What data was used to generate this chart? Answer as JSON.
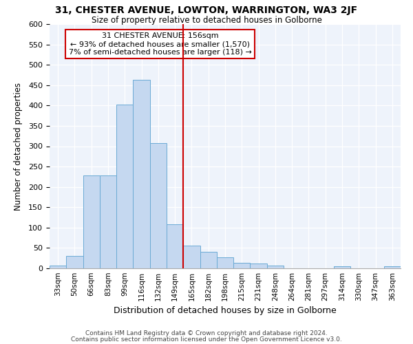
{
  "title1": "31, CHESTER AVENUE, LOWTON, WARRINGTON, WA3 2JF",
  "title2": "Size of property relative to detached houses in Golborne",
  "xlabel": "Distribution of detached houses by size in Golborne",
  "ylabel": "Number of detached properties",
  "bin_labels": [
    "33sqm",
    "50sqm",
    "66sqm",
    "83sqm",
    "99sqm",
    "116sqm",
    "132sqm",
    "149sqm",
    "165sqm",
    "182sqm",
    "198sqm",
    "215sqm",
    "231sqm",
    "248sqm",
    "264sqm",
    "281sqm",
    "297sqm",
    "314sqm",
    "330sqm",
    "347sqm",
    "363sqm"
  ],
  "bar_heights": [
    7,
    30,
    228,
    228,
    403,
    463,
    307,
    109,
    55,
    40,
    27,
    14,
    12,
    7,
    0,
    0,
    0,
    5,
    0,
    0,
    5
  ],
  "bar_color": "#c5d8f0",
  "bar_edge_color": "#6aaad4",
  "vline_x_index": 8,
  "vline_label": "31 CHESTER AVENUE: 156sqm",
  "annotation_line1": "← 93% of detached houses are smaller (1,570)",
  "annotation_line2": "7% of semi-detached houses are larger (118) →",
  "annotation_box_color": "#ffffff",
  "annotation_border_color": "#cc0000",
  "vline_color": "#cc0000",
  "ylim": [
    0,
    600
  ],
  "yticks": [
    0,
    50,
    100,
    150,
    200,
    250,
    300,
    350,
    400,
    450,
    500,
    550,
    600
  ],
  "footer1": "Contains HM Land Registry data © Crown copyright and database right 2024.",
  "footer2": "Contains public sector information licensed under the Open Government Licence v3.0.",
  "plot_bg_color": "#eef3fb"
}
